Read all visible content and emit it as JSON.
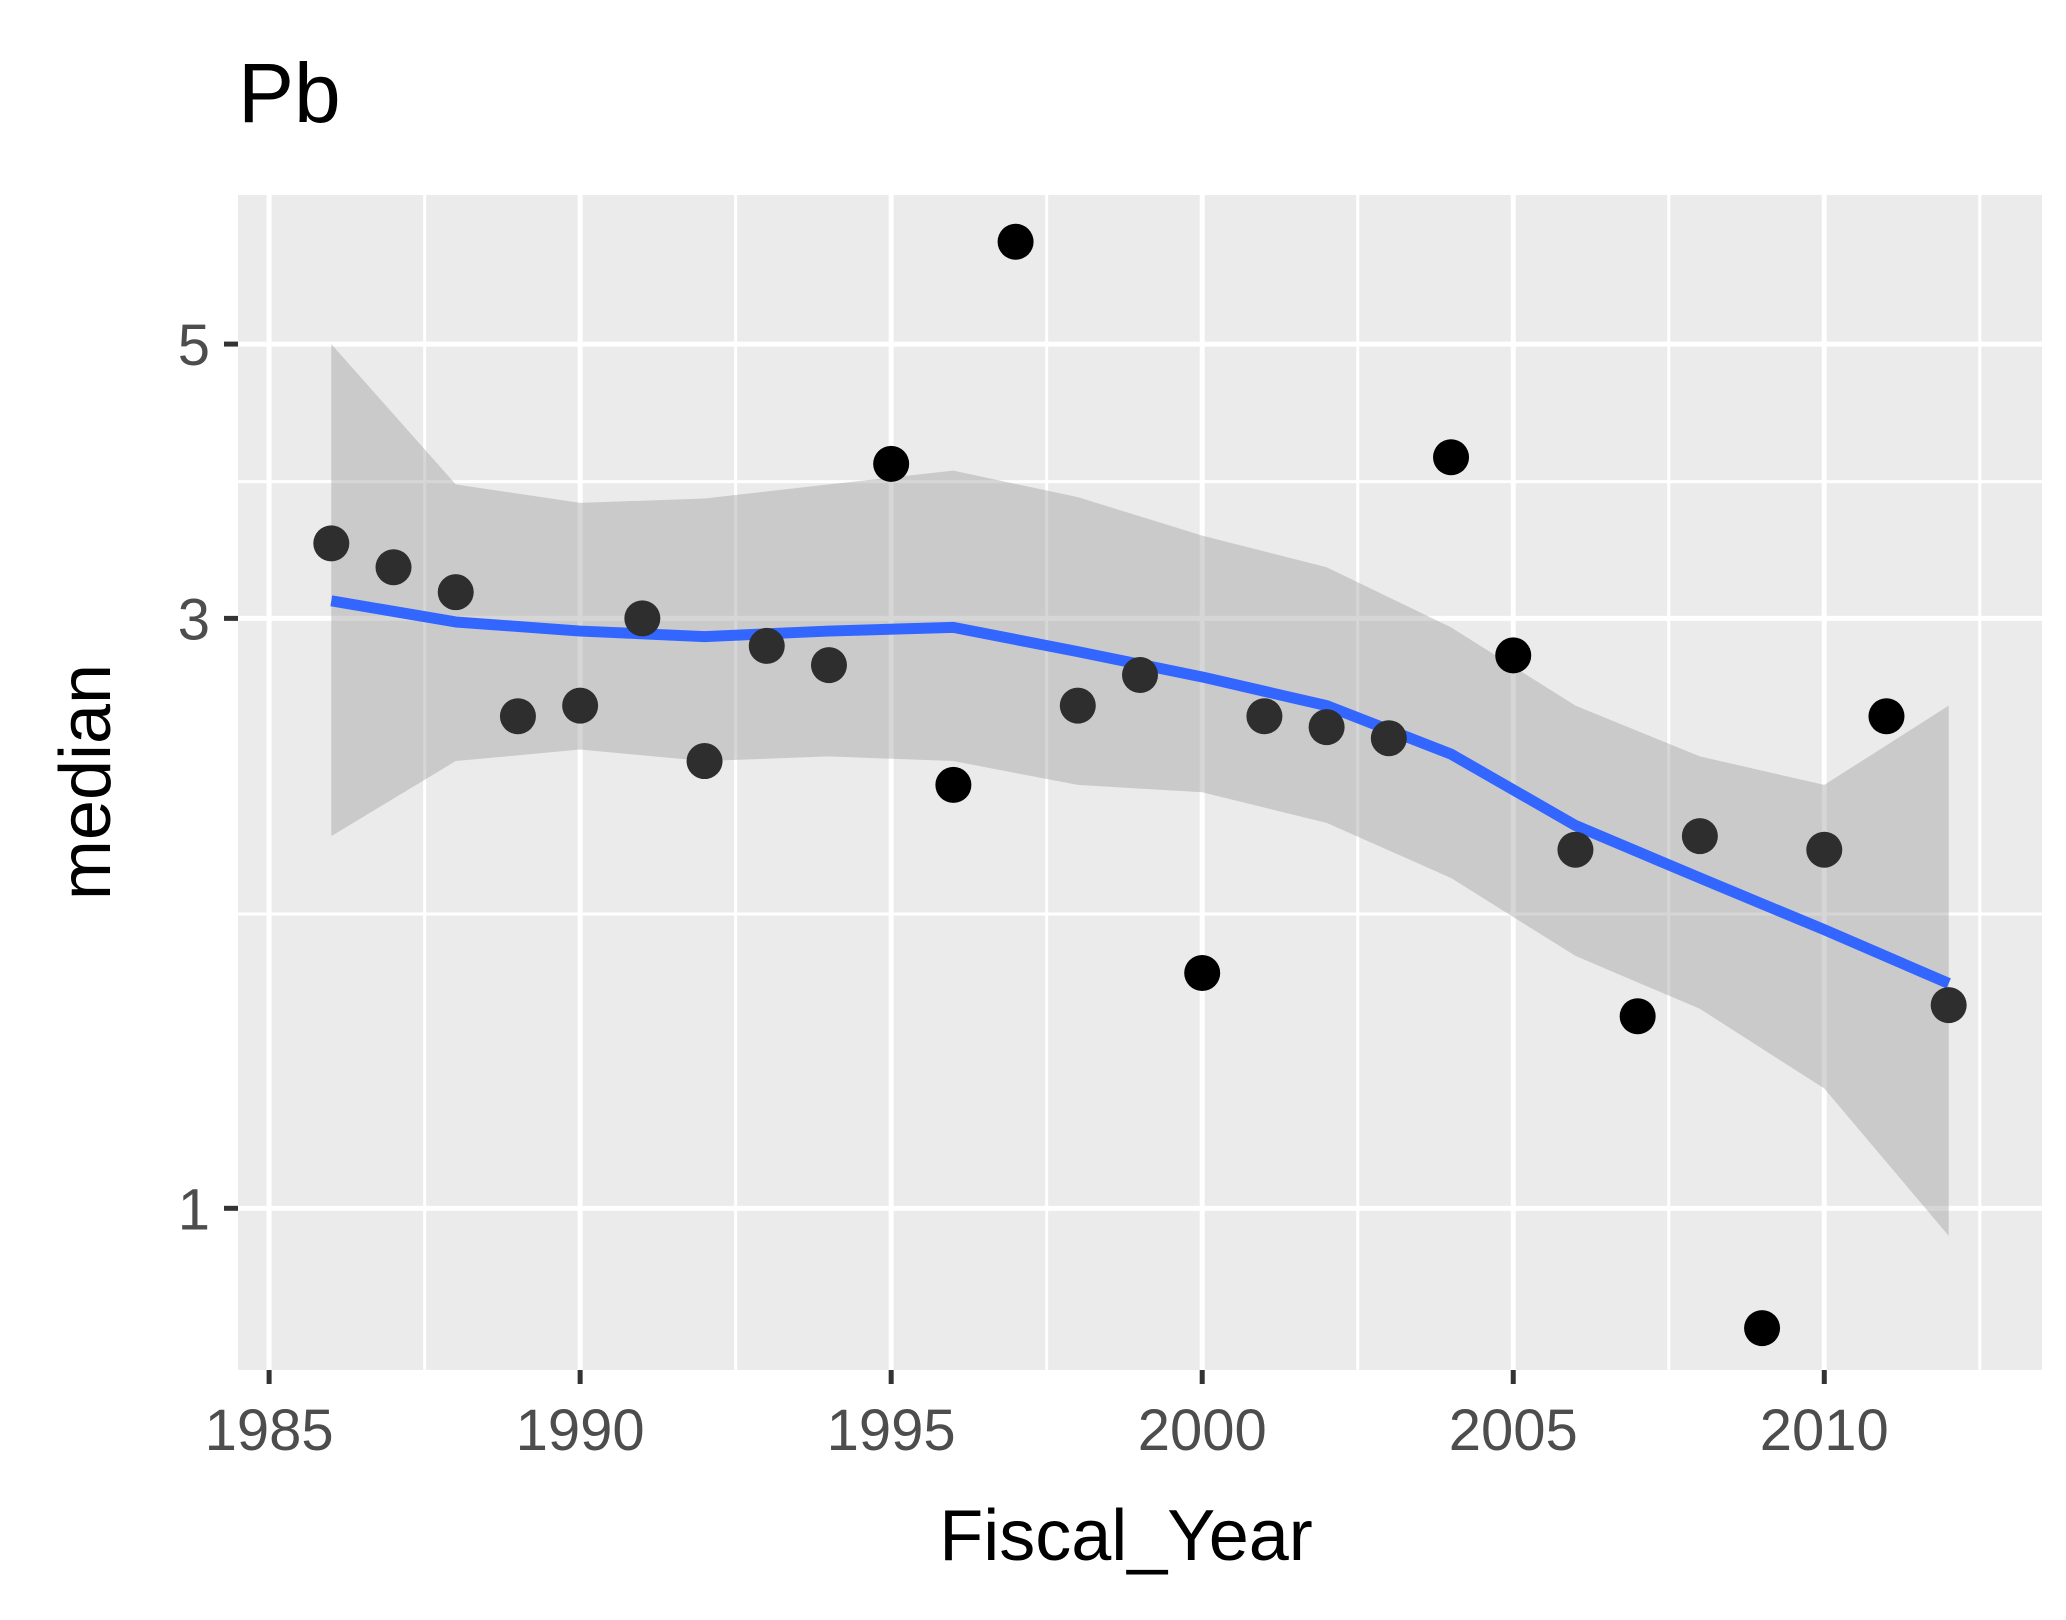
{
  "chart_data": {
    "type": "scatter",
    "title": "Pb",
    "xlabel": "Fiscal_Year",
    "ylabel": "median",
    "x_scale": "linear",
    "y_scale": "log",
    "xlim": [
      1984.5,
      2013.5
    ],
    "ylim": [
      0.74,
      6.6
    ],
    "x_ticks": [
      1985,
      1990,
      1995,
      2000,
      2005,
      2010
    ],
    "x_tick_labels": [
      "1985",
      "1990",
      "1995",
      "2000",
      "2005",
      "2010"
    ],
    "y_ticks": [
      1,
      3,
      5
    ],
    "y_tick_labels": [
      "1",
      "3",
      "5"
    ],
    "y_minor_gridlines": [
      1.73,
      3.87
    ],
    "grid": true,
    "colors": {
      "panel_background": "#ebebeb",
      "grid": "#ffffff",
      "points": "#000000",
      "smooth_line": "#3366ff",
      "confidence_band": "#999999"
    },
    "points": {
      "x": [
        1986,
        1987,
        1988,
        1989,
        1990,
        1991,
        1992,
        1993,
        1994,
        1995,
        1996,
        1997,
        1998,
        1999,
        2000,
        2001,
        2002,
        2003,
        2004,
        2005,
        2006,
        2007,
        2008,
        2009,
        2010,
        2011,
        2012
      ],
      "y": [
        3.45,
        3.3,
        3.15,
        2.5,
        2.55,
        3.0,
        2.3,
        2.85,
        2.75,
        4.0,
        2.2,
        6.05,
        2.55,
        2.7,
        1.55,
        2.5,
        2.45,
        2.4,
        4.05,
        2.8,
        1.95,
        1.43,
        2.0,
        0.8,
        1.95,
        2.5,
        1.46
      ]
    },
    "smooth": {
      "x": [
        1986,
        1988,
        1990,
        1992,
        1994,
        1996,
        1998,
        2000,
        2002,
        2004,
        2006,
        2008,
        2010,
        2012
      ],
      "y": [
        3.1,
        2.98,
        2.93,
        2.9,
        2.93,
        2.95,
        2.82,
        2.69,
        2.55,
        2.33,
        2.04,
        1.85,
        1.68,
        1.52
      ],
      "lower": [
        2.0,
        2.3,
        2.35,
        2.3,
        2.32,
        2.3,
        2.2,
        2.17,
        2.05,
        1.85,
        1.6,
        1.45,
        1.25,
        0.95
      ],
      "upper": [
        5.0,
        3.85,
        3.72,
        3.75,
        3.85,
        3.95,
        3.76,
        3.5,
        3.3,
        2.95,
        2.55,
        2.32,
        2.2,
        2.55
      ]
    }
  }
}
